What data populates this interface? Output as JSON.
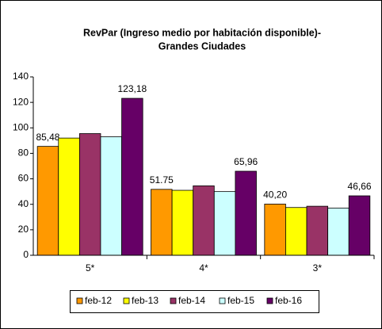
{
  "chart_data": {
    "type": "bar",
    "title": [
      "RevPar (Ingreso medio por habitación disponible)-",
      "Grandes Ciudades"
    ],
    "categories": [
      "5*",
      "4*",
      "3*"
    ],
    "series": [
      {
        "name": "feb-12",
        "color": "#ff9900",
        "values": [
          85.48,
          51.75,
          40.2
        ],
        "value_labels": [
          "85,48",
          "51.75",
          "40,20"
        ]
      },
      {
        "name": "feb-13",
        "color": "#ffff00",
        "values": [
          92,
          51,
          37.5
        ]
      },
      {
        "name": "feb-14",
        "color": "#993366",
        "values": [
          95.5,
          54.5,
          38.5
        ]
      },
      {
        "name": "feb-15",
        "color": "#ccffff",
        "values": [
          93,
          50,
          37
        ]
      },
      {
        "name": "feb-16",
        "color": "#660066",
        "values": [
          123.18,
          65.96,
          46.66
        ],
        "value_labels": [
          "123,18",
          "65,96",
          "46,66"
        ]
      }
    ],
    "ylim": [
      0,
      140
    ],
    "yticks": [
      0,
      20,
      40,
      60,
      80,
      100,
      120,
      140
    ],
    "grid": false,
    "legend": "bottom"
  }
}
